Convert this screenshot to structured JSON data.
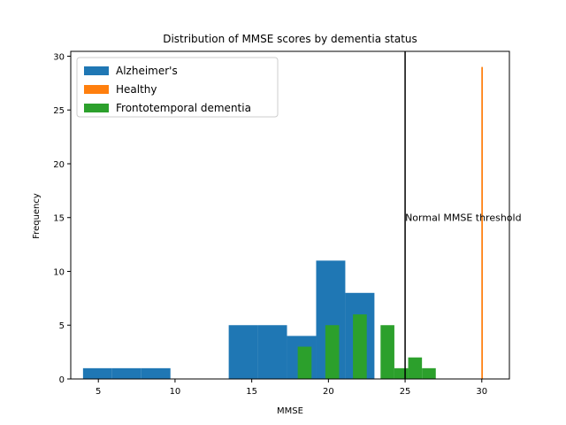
{
  "chart_data": {
    "type": "histogram",
    "title": "Distribution of MMSE scores by dementia status",
    "xlabel": "MMSE",
    "ylabel": "Frequency",
    "xlim": [
      3.2,
      31.8
    ],
    "ylim": [
      0,
      30.45
    ],
    "xticks": [
      5,
      10,
      15,
      20,
      25,
      30
    ],
    "yticks": [
      0,
      5,
      10,
      15,
      20,
      25,
      30
    ],
    "legend_position": "upper-left",
    "grid": false,
    "series": [
      {
        "name": "Alzheimer's",
        "color": "#1f77b4",
        "bins": [
          {
            "x0": 4.0,
            "x1": 5.9,
            "count": 1
          },
          {
            "x0": 5.9,
            "x1": 7.8,
            "count": 1
          },
          {
            "x0": 7.8,
            "x1": 9.7,
            "count": 1
          },
          {
            "x0": 9.7,
            "x1": 11.6,
            "count": 0
          },
          {
            "x0": 11.6,
            "x1": 13.5,
            "count": 0
          },
          {
            "x0": 13.5,
            "x1": 15.4,
            "count": 5
          },
          {
            "x0": 15.4,
            "x1": 17.3,
            "count": 5
          },
          {
            "x0": 17.3,
            "x1": 19.2,
            "count": 4
          },
          {
            "x0": 19.2,
            "x1": 21.1,
            "count": 11
          },
          {
            "x0": 21.1,
            "x1": 23.0,
            "count": 8
          }
        ]
      },
      {
        "name": "Healthy",
        "color": "#ff7f0e",
        "bins": [
          {
            "x0": 29.97,
            "x1": 30.07,
            "count": 29
          }
        ]
      },
      {
        "name": "Frontotemporal dementia",
        "color": "#2ca02c",
        "bins": [
          {
            "x0": 18.0,
            "x1": 18.9,
            "count": 3
          },
          {
            "x0": 18.9,
            "x1": 19.8,
            "count": 0
          },
          {
            "x0": 19.8,
            "x1": 20.7,
            "count": 5
          },
          {
            "x0": 20.7,
            "x1": 21.6,
            "count": 0
          },
          {
            "x0": 21.6,
            "x1": 22.5,
            "count": 6
          },
          {
            "x0": 22.5,
            "x1": 23.4,
            "count": 0
          },
          {
            "x0": 23.4,
            "x1": 24.3,
            "count": 5
          },
          {
            "x0": 24.3,
            "x1": 25.2,
            "count": 1
          },
          {
            "x0": 25.2,
            "x1": 26.1,
            "count": 2
          },
          {
            "x0": 26.1,
            "x1": 27.0,
            "count": 1
          }
        ]
      }
    ],
    "reference_line": {
      "x": 25,
      "color": "#000000",
      "label": "Normal MMSE threshold",
      "label_y": 15
    }
  }
}
